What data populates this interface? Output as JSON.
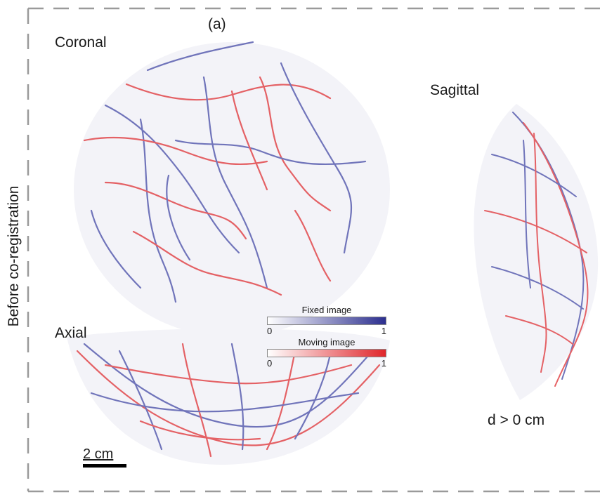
{
  "panel_label": "(a)",
  "row_label": "Before co-registration",
  "views": {
    "coronal": "Coronal",
    "sagittal": "Sagittal",
    "axial": "Axial"
  },
  "colorbars": {
    "fixed": {
      "title": "Fixed image",
      "min": "0",
      "max": "1",
      "color": "#2c2f8f"
    },
    "moving": {
      "title": "Moving image",
      "min": "0",
      "max": "1",
      "color": "#e0262b"
    }
  },
  "scalebar_label": "2 cm",
  "distance_label": "d > 0 cm"
}
